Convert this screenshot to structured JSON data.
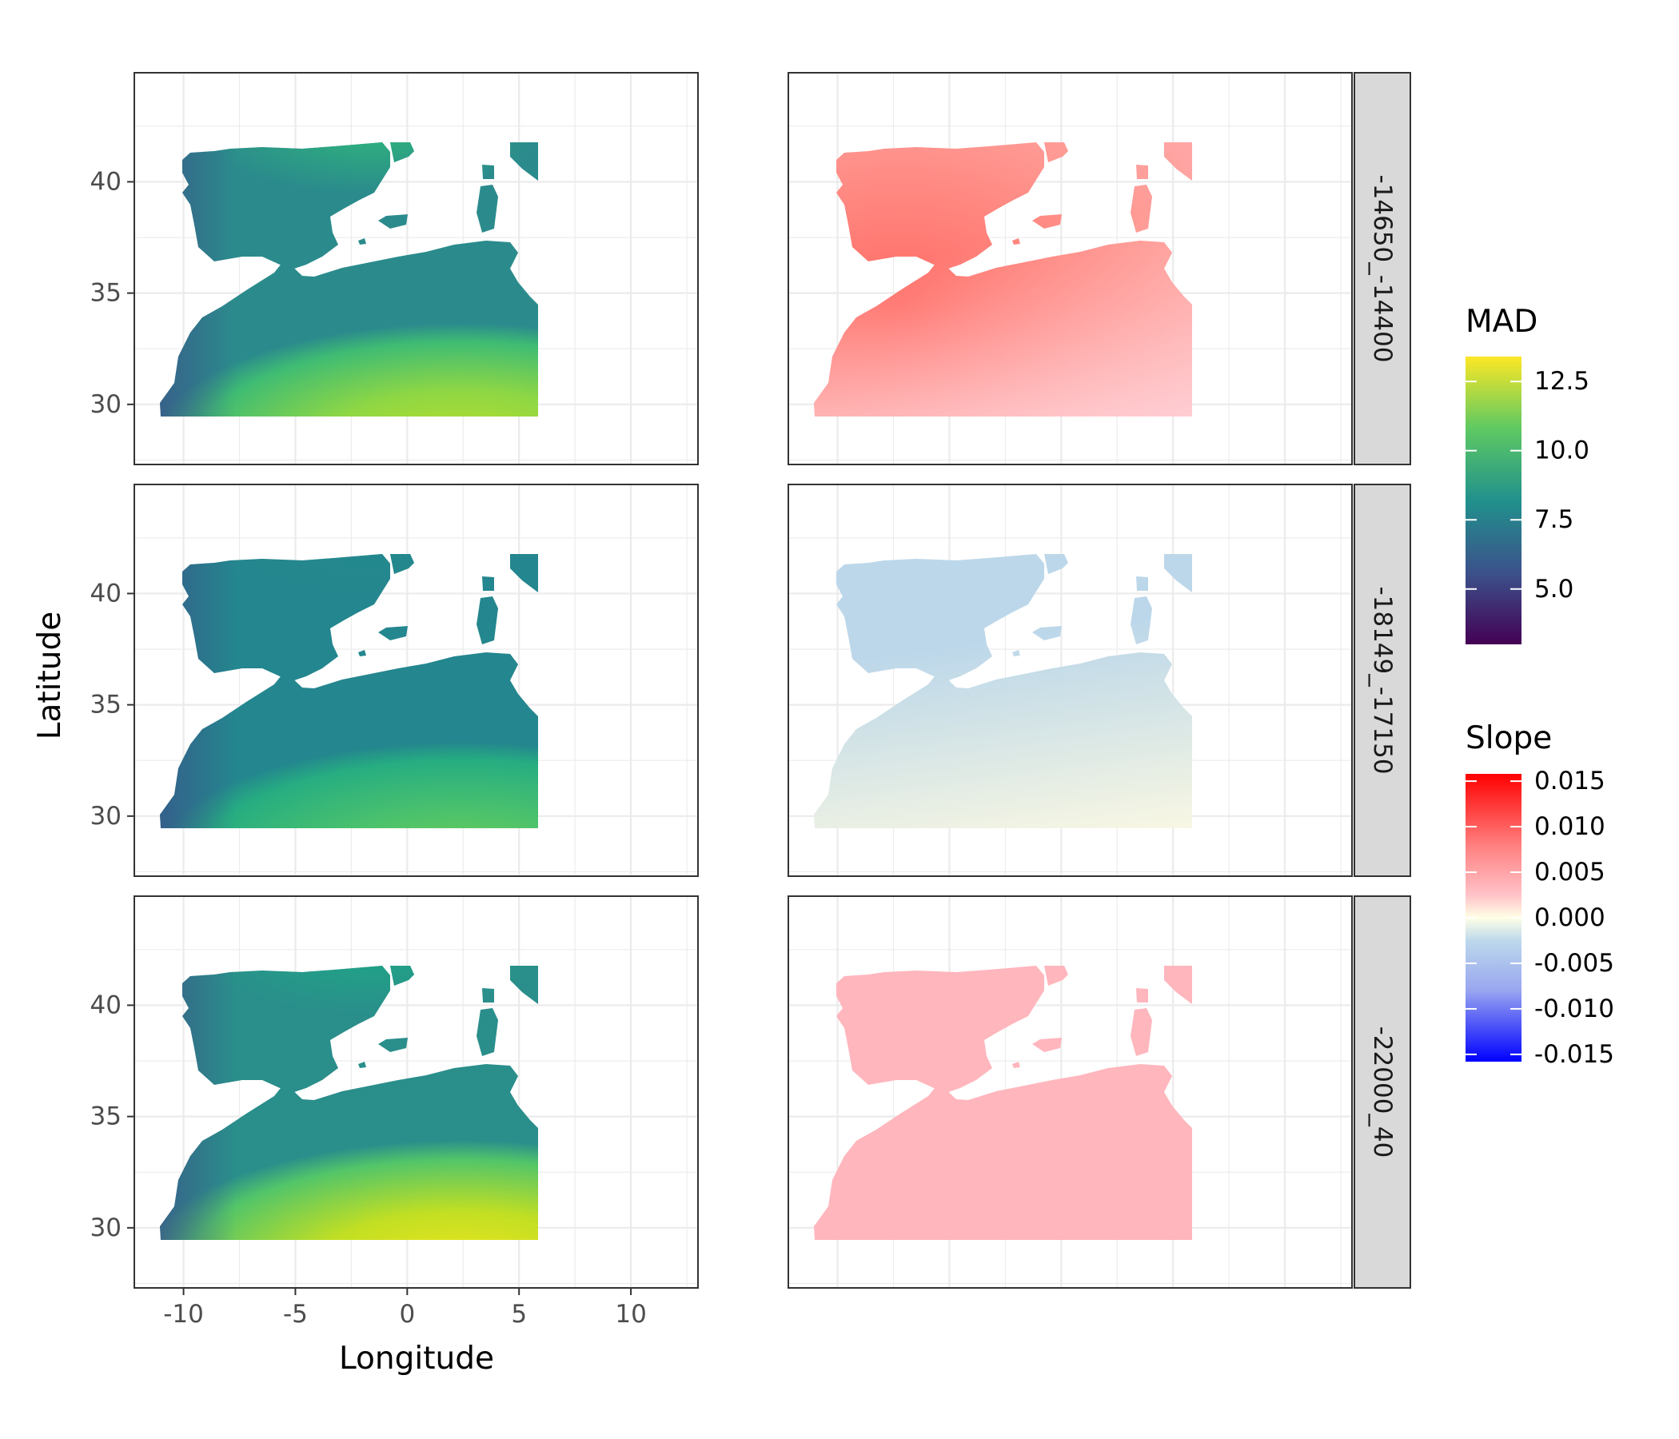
{
  "chart_data": {
    "type": "heatmap",
    "xlabel": "Longitude",
    "ylabel": "Latitude",
    "xlim": [
      -12.2,
      13.0
    ],
    "ylim": [
      27.3,
      44.9
    ],
    "x_ticks": [
      "-10",
      "-5",
      "0",
      "5",
      "10"
    ],
    "x_tick_values": [
      -10,
      -5,
      0,
      5,
      10
    ],
    "y_ticks": [
      "30",
      "35",
      "40"
    ],
    "y_tick_values": [
      30,
      35,
      40
    ],
    "grid": true,
    "columns": [
      "MAD",
      "Slope"
    ],
    "rows": [
      {
        "strip": "-14650_-14400",
        "mad_mean": 9.6,
        "slope_mean": 0.009
      },
      {
        "strip": "-18149_-17150",
        "mad_mean": 7.6,
        "slope_mean": -0.003
      },
      {
        "strip": "-22000_40",
        "mad_mean": 10.2,
        "slope_mean": 0.004
      }
    ],
    "legends": [
      {
        "title": "MAD",
        "labels": [
          "12.5",
          "10.0",
          "7.5",
          "5.0"
        ],
        "values": [
          12.5,
          10.0,
          7.5,
          5.0
        ],
        "range": [
          3.0,
          13.4
        ],
        "colors": [
          "#440154",
          "#3b528b",
          "#21918c",
          "#5ec962",
          "#fde725"
        ]
      },
      {
        "title": "Slope",
        "labels": [
          "0.015",
          "0.010",
          "0.005",
          "0.000",
          "-0.005",
          "-0.010",
          "-0.015"
        ],
        "values": [
          0.015,
          0.01,
          0.005,
          0.0,
          -0.005,
          -0.01,
          -0.015
        ],
        "range": [
          -0.0158,
          0.0158
        ],
        "colors": [
          "#0000ff",
          "#abd9e9",
          "#ffffe5",
          "#ffb6c1",
          "#ff0000"
        ]
      }
    ]
  }
}
